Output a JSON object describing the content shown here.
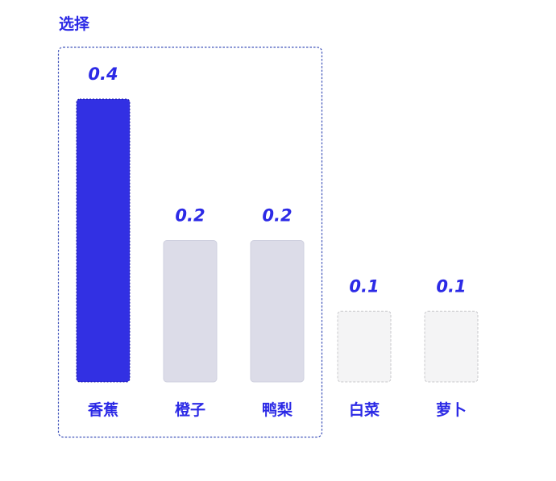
{
  "header": {
    "title": "选择"
  },
  "colors": {
    "accent": "#2c2ae6",
    "selected_bar": "#3230e3",
    "mid_bar": "#dcdce8",
    "mid_bar_border": "#cfd0df",
    "low_bar": "#f4f4f5",
    "low_bar_border": "#c9c9cc",
    "selection_border": "#3b4fb8"
  },
  "chart_data": {
    "type": "bar",
    "title": "",
    "xlabel": "",
    "ylabel": "",
    "categories": [
      "香蕉",
      "橙子",
      "鸭梨",
      "白菜",
      "萝卜"
    ],
    "values": [
      0.4,
      0.2,
      0.2,
      0.1,
      0.1
    ],
    "value_labels": [
      "0.4",
      "0.2",
      "0.2",
      "0.1",
      "0.1"
    ],
    "ylim": [
      0,
      0.4
    ],
    "grid": false,
    "legend": "none",
    "selected": [
      "香蕉",
      "橙子",
      "鸭梨"
    ],
    "highlighted": "香蕉"
  }
}
